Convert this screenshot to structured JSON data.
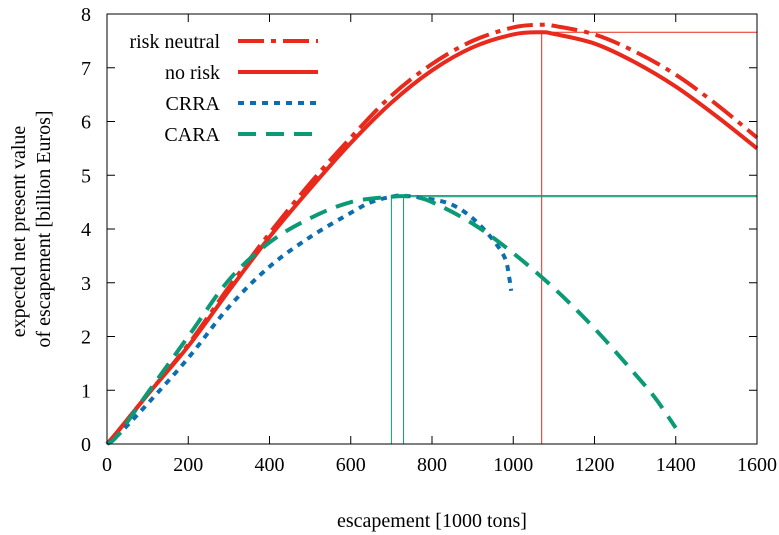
{
  "chart_data": {
    "type": "line",
    "xlabel": "escapement [1000 tons]",
    "ylabel": [
      "expected net present value",
      "of escapement [billion Euros]"
    ],
    "xlim": [
      0,
      1600
    ],
    "ylim": [
      0,
      8
    ],
    "xticks": [
      0,
      200,
      400,
      600,
      800,
      1000,
      1200,
      1400,
      1600
    ],
    "yticks": [
      0,
      1,
      2,
      3,
      4,
      5,
      6,
      7,
      8
    ],
    "grid": false,
    "legend_position": "top-left",
    "series": [
      {
        "name": "risk neutral",
        "color": "#e8291c",
        "dash": "dash-dot",
        "x": [
          0,
          25,
          100,
          200,
          300,
          400,
          500,
          600,
          700,
          800,
          900,
          1000,
          1070,
          1100,
          1200,
          1300,
          1400,
          1500,
          1600
        ],
        "y": [
          0.0,
          0.22,
          0.92,
          1.85,
          2.92,
          3.92,
          4.85,
          5.7,
          6.48,
          7.07,
          7.5,
          7.75,
          7.8,
          7.78,
          7.62,
          7.3,
          6.87,
          6.32,
          5.7
        ]
      },
      {
        "name": "no risk",
        "color": "#e8291c",
        "dash": "solid",
        "x": [
          0,
          25,
          100,
          200,
          300,
          400,
          500,
          600,
          700,
          800,
          900,
          1000,
          1070,
          1100,
          1200,
          1300,
          1400,
          1500,
          1600
        ],
        "y": [
          0.0,
          0.22,
          0.92,
          1.82,
          2.85,
          3.85,
          4.75,
          5.6,
          6.35,
          6.95,
          7.38,
          7.62,
          7.66,
          7.63,
          7.45,
          7.1,
          6.65,
          6.1,
          5.5
        ]
      },
      {
        "name": "CRRA",
        "color": "#0d6eaf",
        "dash": "dot",
        "x": [
          0,
          25,
          100,
          200,
          300,
          400,
          500,
          600,
          650,
          700,
          730,
          800,
          850,
          900,
          950,
          980,
          990,
          995
        ],
        "y": [
          0.0,
          0.15,
          0.75,
          1.6,
          2.55,
          3.3,
          3.85,
          4.3,
          4.5,
          4.6,
          4.62,
          4.55,
          4.45,
          4.2,
          3.8,
          3.45,
          3.1,
          2.85
        ]
      },
      {
        "name": "CARA",
        "color": "#0b9a76",
        "dash": "dash",
        "x": [
          0,
          25,
          100,
          200,
          300,
          400,
          500,
          600,
          700,
          750,
          800,
          900,
          1000,
          1100,
          1200,
          1300,
          1350,
          1400
        ],
        "y": [
          0.0,
          0.15,
          0.95,
          2.0,
          3.05,
          3.75,
          4.2,
          4.5,
          4.6,
          4.6,
          4.5,
          4.1,
          3.55,
          2.9,
          2.15,
          1.3,
          0.85,
          0.3
        ]
      }
    ],
    "reference_lines": [
      {
        "series": "no risk",
        "color": "#e8291c",
        "x": 1070,
        "y": 7.66
      },
      {
        "series": "CRRA",
        "color": "#0b9a76",
        "x": 730,
        "y": 4.62
      },
      {
        "series": "CARA",
        "color": "#0b9a76",
        "x": 700,
        "y": 4.6
      }
    ]
  }
}
